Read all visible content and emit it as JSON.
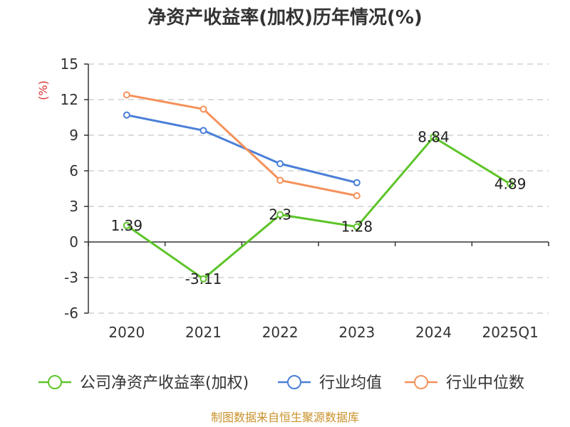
{
  "chart_data": {
    "type": "line",
    "title": "净资产收益率(加权)历年情况(%)",
    "ylabel": "(%)",
    "xlabel": "",
    "categories": [
      "2020",
      "2021",
      "2022",
      "2023",
      "2024",
      "2025Q1"
    ],
    "ylim": [
      -6,
      15
    ],
    "yticks": [
      15,
      12,
      9,
      6,
      3,
      0,
      -3,
      -6
    ],
    "grid": true,
    "legend_position": "bottom",
    "series": [
      {
        "name": "公司净资产收益率(加权)",
        "color": "#5ec42a",
        "values": [
          1.39,
          -3.11,
          2.3,
          1.28,
          8.84,
          4.89
        ],
        "labels": [
          "1.39",
          "-3.11",
          "2.3",
          "1.28",
          "8.84",
          "4.89"
        ]
      },
      {
        "name": "行业均值",
        "color": "#4a7fd8",
        "values": [
          10.7,
          9.4,
          6.6,
          5.0,
          null,
          null
        ]
      },
      {
        "name": "行业中位数",
        "color": "#f5915b",
        "values": [
          12.4,
          11.2,
          5.2,
          3.9,
          null,
          null
        ]
      }
    ]
  },
  "source": "制图数据来自恒生聚源数据库",
  "colors": {
    "unit": "#d62e2e",
    "source": "#c9912a"
  }
}
